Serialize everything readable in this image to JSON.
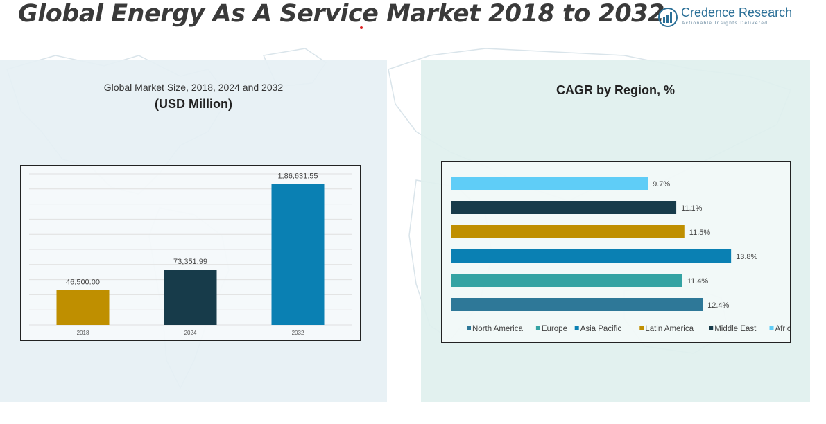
{
  "header": {
    "title": "Global Energy As A Service Market 2018 to 2032",
    "brand_name": "Credence Research",
    "brand_tagline": "Actionable Insights Delivered"
  },
  "left_panel": {
    "subtitle": "Global Market Size, 2018, 2024 and 2032",
    "unit": "(USD Million)"
  },
  "right_panel": {
    "title": "CAGR by Region, %"
  },
  "chart_data": [
    {
      "type": "bar",
      "title": "Global Market Size, 2018, 2024 and 2032",
      "subtitle": "(USD Million)",
      "categories": [
        "2018",
        "2024",
        "2032"
      ],
      "values": [
        46500.0,
        73351.99,
        186631.55
      ],
      "value_labels": [
        "46,500.00",
        "73,351.99",
        "1,86,631.55"
      ],
      "colors": [
        "#bf8f00",
        "#173b4a",
        "#0a80b3"
      ],
      "ylim": [
        0,
        200000
      ],
      "grid": true,
      "legend": "none"
    },
    {
      "type": "bar",
      "orientation": "horizontal",
      "title": "CAGR by Region, %",
      "categories": [
        "North America",
        "Europe",
        "Asia Pacific",
        "Latin America",
        "Middle East",
        "Africa"
      ],
      "values": [
        12.4,
        11.4,
        13.8,
        11.5,
        11.1,
        9.7
      ],
      "value_labels": [
        "12.4%",
        "11.4%",
        "13.8%",
        "11.5%",
        "11.1%",
        "9.7%"
      ],
      "colors": [
        "#2e7898",
        "#34a3a3",
        "#0a80b3",
        "#bf8f00",
        "#173b4a",
        "#5fcdf7"
      ],
      "xlim": [
        0,
        14
      ],
      "grid": false,
      "legend": "bottom"
    }
  ]
}
